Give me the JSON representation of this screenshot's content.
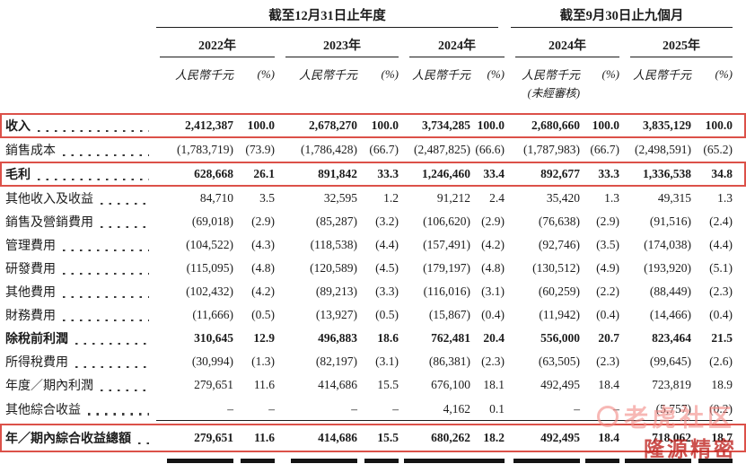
{
  "header": {
    "annual_period": "截至12月31日止年度",
    "interim_period": "截至9月30日止九個月",
    "years": [
      "2022年",
      "2023年",
      "2024年",
      "2024年",
      "2025年"
    ],
    "unit_label": "人民幣千元",
    "pct_label": "(%)",
    "unaudited_note": "(未經審核)"
  },
  "table": {
    "rows": [
      {
        "label": "收入",
        "bold": true,
        "boxed": true,
        "rule_under": false,
        "values": [
          "2,412,387",
          "100.0",
          "2,678,270",
          "100.0",
          "3,734,285",
          "100.0",
          "2,680,660",
          "100.0",
          "3,835,129",
          "100.0"
        ]
      },
      {
        "label": "銷售成本",
        "bold": false,
        "boxed": false,
        "rule_under": false,
        "values": [
          "(1,783,719)",
          "(73.9)",
          "(1,786,428)",
          "(66.7)",
          "(2,487,825)",
          "(66.6)",
          "(1,787,983)",
          "(66.7)",
          "(2,498,591)",
          "(65.2)"
        ]
      },
      {
        "label": "毛利",
        "bold": true,
        "boxed": true,
        "rule_under": false,
        "values": [
          "628,668",
          "26.1",
          "891,842",
          "33.3",
          "1,246,460",
          "33.4",
          "892,677",
          "33.3",
          "1,336,538",
          "34.8"
        ]
      },
      {
        "label": "其他收入及收益",
        "bold": false,
        "boxed": false,
        "rule_under": false,
        "values": [
          "84,710",
          "3.5",
          "32,595",
          "1.2",
          "91,212",
          "2.4",
          "35,420",
          "1.3",
          "49,315",
          "1.3"
        ]
      },
      {
        "label": "銷售及營銷費用",
        "bold": false,
        "boxed": false,
        "rule_under": false,
        "values": [
          "(69,018)",
          "(2.9)",
          "(85,287)",
          "(3.2)",
          "(106,620)",
          "(2.9)",
          "(76,638)",
          "(2.9)",
          "(91,516)",
          "(2.4)"
        ]
      },
      {
        "label": "管理費用",
        "bold": false,
        "boxed": false,
        "rule_under": false,
        "values": [
          "(104,522)",
          "(4.3)",
          "(118,538)",
          "(4.4)",
          "(157,491)",
          "(4.2)",
          "(92,746)",
          "(3.5)",
          "(174,038)",
          "(4.4)"
        ]
      },
      {
        "label": "研發費用",
        "bold": false,
        "boxed": false,
        "rule_under": false,
        "values": [
          "(115,095)",
          "(4.8)",
          "(120,589)",
          "(4.5)",
          "(179,197)",
          "(4.8)",
          "(130,512)",
          "(4.9)",
          "(193,920)",
          "(5.1)"
        ]
      },
      {
        "label": "其他費用",
        "bold": false,
        "boxed": false,
        "rule_under": false,
        "values": [
          "(102,432)",
          "(4.2)",
          "(89,213)",
          "(3.3)",
          "(116,016)",
          "(3.1)",
          "(60,259)",
          "(2.2)",
          "(88,449)",
          "(2.3)"
        ]
      },
      {
        "label": "財務費用",
        "bold": false,
        "boxed": false,
        "rule_under": false,
        "values": [
          "(11,666)",
          "(0.5)",
          "(13,927)",
          "(0.5)",
          "(15,867)",
          "(0.4)",
          "(11,942)",
          "(0.4)",
          "(14,466)",
          "(0.4)"
        ]
      },
      {
        "label": "除稅前利潤",
        "bold": true,
        "boxed": false,
        "rule_under": false,
        "values": [
          "310,645",
          "12.9",
          "496,883",
          "18.6",
          "762,481",
          "20.4",
          "556,000",
          "20.7",
          "823,464",
          "21.5"
        ]
      },
      {
        "label": "所得稅費用",
        "bold": false,
        "boxed": false,
        "rule_under": false,
        "values": [
          "(30,994)",
          "(1.3)",
          "(82,197)",
          "(3.1)",
          "(86,381)",
          "(2.3)",
          "(63,505)",
          "(2.3)",
          "(99,645)",
          "(2.6)"
        ]
      },
      {
        "label": "年度／期內利潤",
        "bold": false,
        "boxed": false,
        "rule_under": false,
        "values": [
          "279,651",
          "11.6",
          "414,686",
          "15.5",
          "676,100",
          "18.1",
          "492,495",
          "18.4",
          "723,819",
          "18.9"
        ]
      },
      {
        "label": "其他綜合收益",
        "bold": false,
        "boxed": false,
        "rule_under": true,
        "values": [
          "–",
          "–",
          "–",
          "–",
          "4,162",
          "0.1",
          "–",
          "–",
          "(5,757)",
          "(0.2)"
        ]
      },
      {
        "label": "年／期內綜合收益總額",
        "bold": true,
        "boxed": true,
        "rule_under": false,
        "values": [
          "279,651",
          "11.6",
          "414,686",
          "15.5",
          "680,262",
          "18.2",
          "492,495",
          "18.4",
          "718,062",
          "18.7"
        ]
      }
    ]
  },
  "watermark": {
    "community_text": "老虎社区",
    "overlay_text": "隆源精密"
  },
  "colors": {
    "highlight_box": "#dc5149",
    "text": "#1c1c1c",
    "watermark_pink": "#f28c87",
    "watermark_red": "#be201c"
  }
}
